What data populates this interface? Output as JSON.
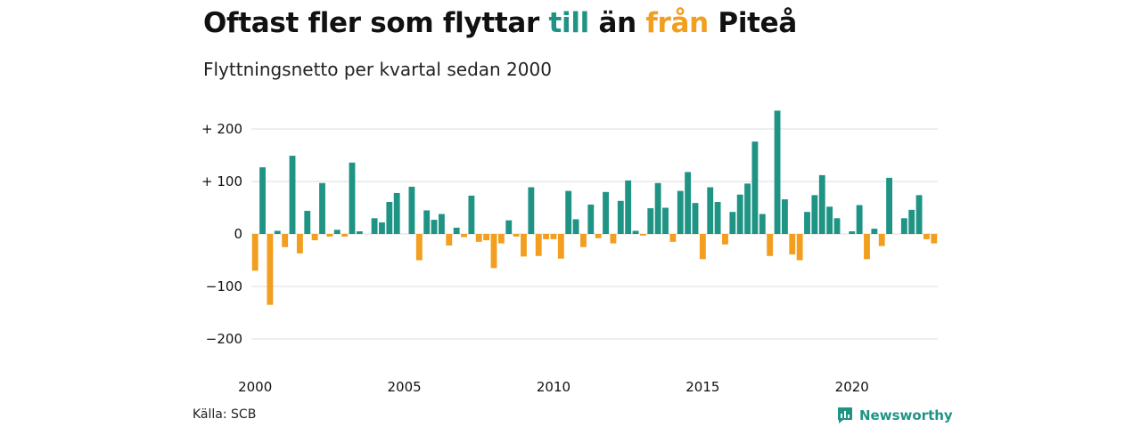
{
  "title": {
    "part1": "Oftast fler som flyttar ",
    "part2": "till",
    "part3": " än ",
    "part4": "från",
    "part5": " Piteå"
  },
  "subtitle": "Flyttningsnetto per kvartal sedan 2000",
  "source": "Källa: SCB",
  "brand": {
    "name": "Newsworthy",
    "icon": "newsworthy-logo-icon"
  },
  "colors": {
    "positive": "#1f9485",
    "negative": "#f29e1f",
    "grid": "#dddddd",
    "text": "#111111"
  },
  "chart_data": {
    "type": "bar",
    "x_start": "2000 Q1",
    "x_end": "2022 Q4",
    "ylim": [
      -250,
      250
    ],
    "y_ticks": [
      {
        "value": 200,
        "label": "+ 200"
      },
      {
        "value": 100,
        "label": "+ 100"
      },
      {
        "value": 0,
        "label": "0"
      },
      {
        "value": -100,
        "label": "−100"
      },
      {
        "value": -200,
        "label": "−200"
      }
    ],
    "x_ticks": [
      "2000",
      "2005",
      "2010",
      "2015",
      "2020"
    ],
    "grid": true,
    "values": [
      -70,
      127,
      -135,
      6,
      -25,
      149,
      -37,
      44,
      -12,
      97,
      -5,
      8,
      -5,
      136,
      5,
      0,
      30,
      22,
      61,
      78,
      0,
      90,
      -50,
      45,
      27,
      38,
      -22,
      12,
      -6,
      73,
      -15,
      -12,
      -65,
      -18,
      26,
      -5,
      -43,
      89,
      -42,
      -10,
      -10,
      -47,
      82,
      28,
      -25,
      56,
      -8,
      80,
      -18,
      63,
      102,
      6,
      -3,
      49,
      97,
      50,
      -15,
      82,
      118,
      59,
      -48,
      89,
      61,
      -20,
      42,
      75,
      96,
      176,
      38,
      -42,
      235,
      66,
      -39,
      -50,
      42,
      74,
      112,
      52,
      30,
      0,
      5,
      55,
      -48,
      10,
      -23,
      107,
      0,
      30,
      46,
      74,
      -10,
      -18
    ]
  }
}
